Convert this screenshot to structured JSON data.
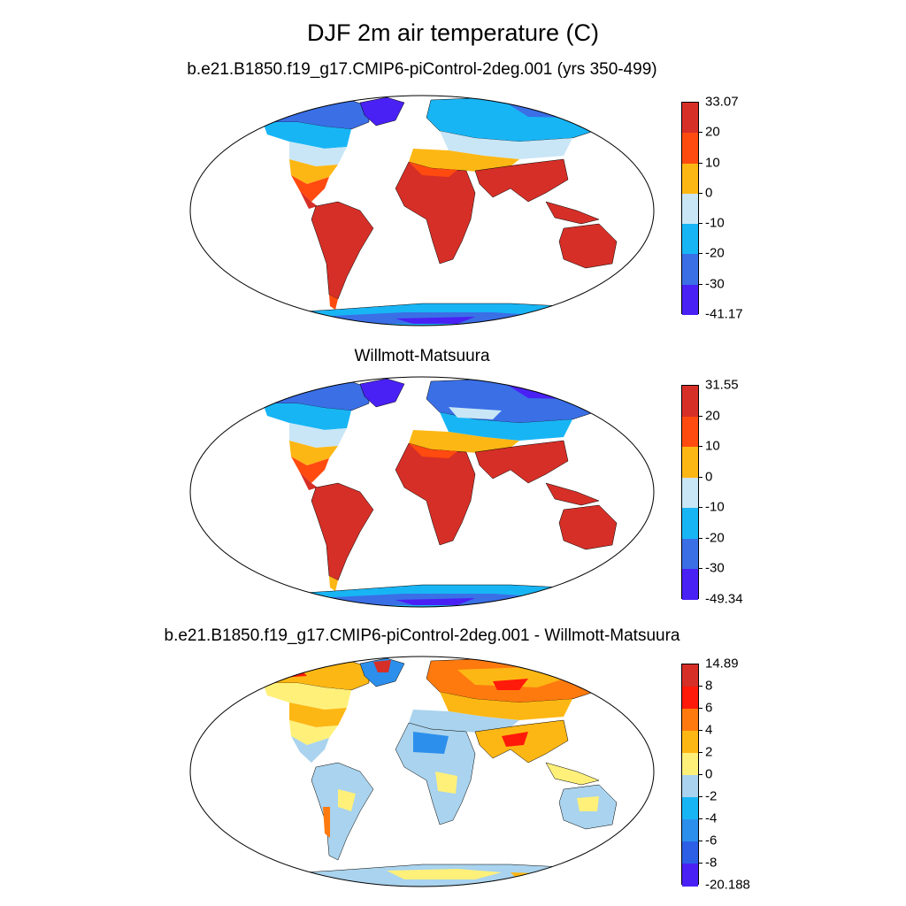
{
  "title": "DJF 2m air temperature (C)",
  "panels": [
    {
      "title": "b.e21.B1850.f19_g17.CMIP6-piControl-2deg.001 (yrs 350-499)",
      "colorbar": {
        "labels": [
          "33.07",
          "20",
          "10",
          "0",
          "-10",
          "-20",
          "-30",
          "-41.17"
        ],
        "colors": [
          "#d62f27",
          "#ff4b0f",
          "#fdb714",
          "#c9e6f6",
          "#18b5f5",
          "#3a6fe6",
          "#4a21f4"
        ]
      }
    },
    {
      "title": "Willmott-Matsuura",
      "colorbar": {
        "labels": [
          "31.55",
          "20",
          "10",
          "0",
          "-10",
          "-20",
          "-30",
          "-49.34"
        ],
        "colors": [
          "#d62f27",
          "#ff4b0f",
          "#fdb714",
          "#c9e6f6",
          "#18b5f5",
          "#3a6fe6",
          "#4a21f4"
        ]
      }
    },
    {
      "title": "b.e21.B1850.f19_g17.CMIP6-piControl-2deg.001 - Willmott-Matsuura",
      "colorbar": {
        "labels": [
          "14.89",
          "8",
          "6",
          "4",
          "2",
          "0",
          "-2",
          "-4",
          "-6",
          "-8",
          "-20.188"
        ],
        "colors": [
          "#d62f27",
          "#ff1a0a",
          "#ff7a0e",
          "#fdb714",
          "#fff07a",
          "#a9d3ee",
          "#18b5f5",
          "#2c8fec",
          "#2d5fe6",
          "#4a21f4"
        ]
      }
    }
  ]
}
